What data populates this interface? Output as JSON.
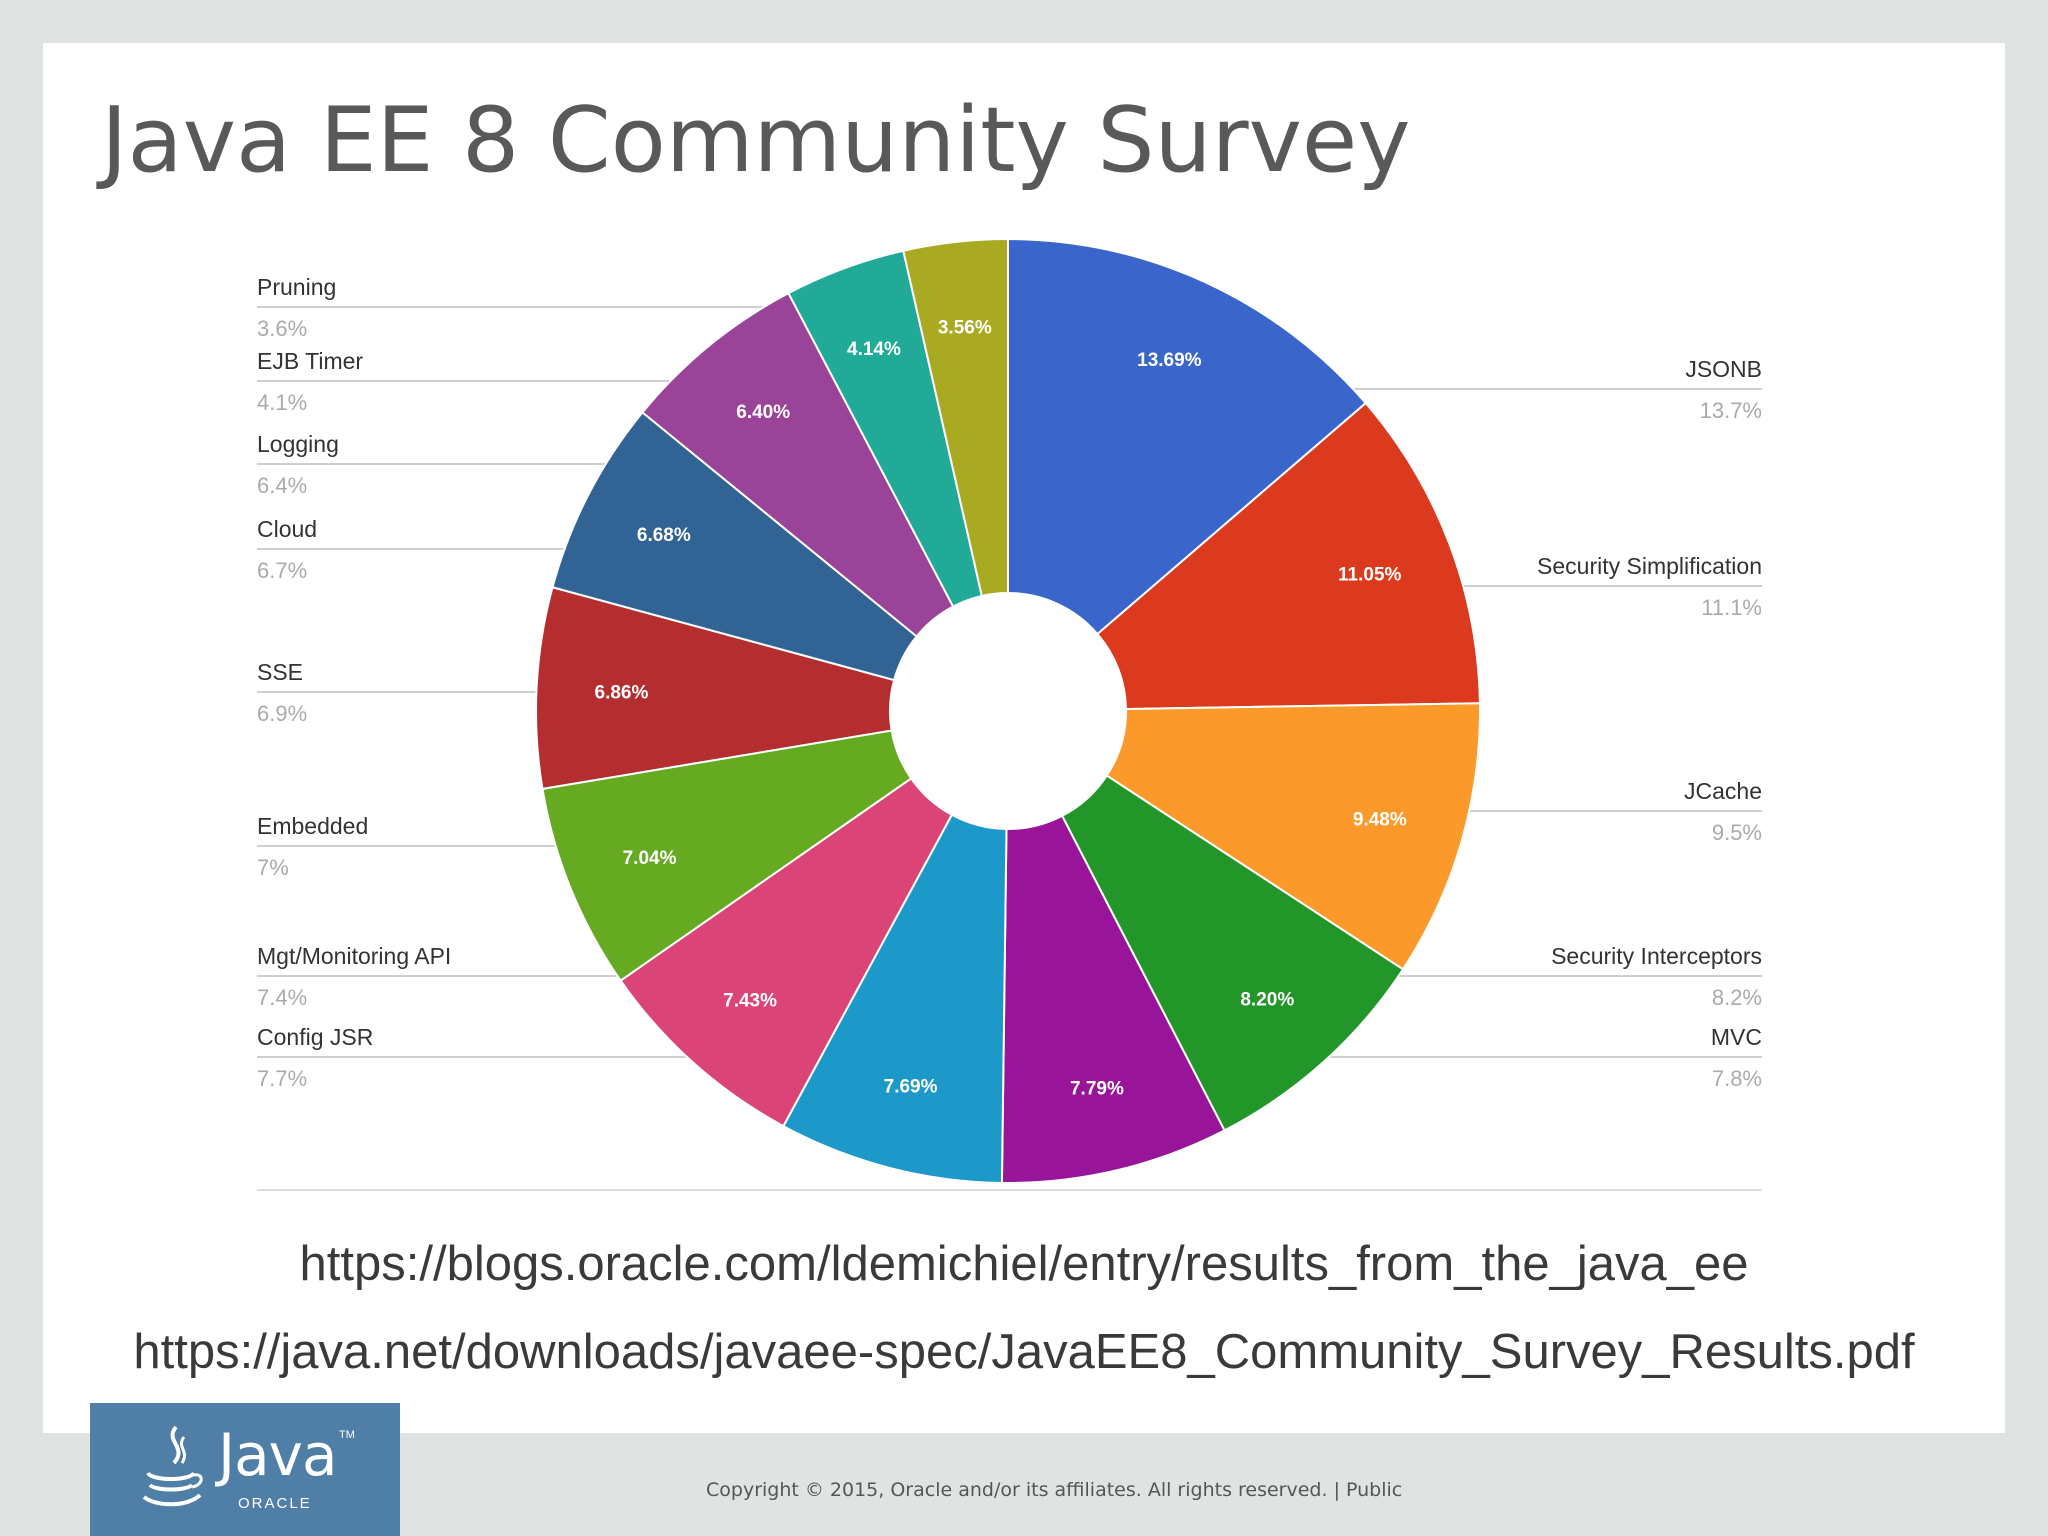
{
  "slide": {
    "title": "Java EE 8 Community Survey",
    "url1": "https://blogs.oracle.com/ldemichiel/entry/results_from_the_java_ee",
    "url2": "https://java.net/downloads/javaee-spec/JavaEE8_Community_Survey_Results.pdf",
    "footer": "Copyright © 2015, Oracle and/or its affiliates. All rights reserved.  |  Public",
    "logo": {
      "word": "Java",
      "tm": "TM",
      "sub": "ORACLE",
      "icon": "java-cup-icon"
    }
  },
  "chart_data": {
    "type": "pie",
    "donut": true,
    "title": "",
    "slices": [
      {
        "name": "JSONB",
        "value": 13.69,
        "slice_label": "13.69%",
        "legend_value": "13.7%",
        "color": "#3a66cc",
        "side": "right"
      },
      {
        "name": "Security Simplification",
        "value": 11.05,
        "slice_label": "11.05%",
        "legend_value": "11.1%",
        "color": "#dc3a1e",
        "side": "right"
      },
      {
        "name": "JCache",
        "value": 9.48,
        "slice_label": "9.48%",
        "legend_value": "9.5%",
        "color": "#fb992b",
        "side": "right"
      },
      {
        "name": "Security Interceptors",
        "value": 8.2,
        "slice_label": "8.20%",
        "legend_value": "8.2%",
        "color": "#23962a",
        "side": "right"
      },
      {
        "name": "MVC",
        "value": 7.79,
        "slice_label": "7.79%",
        "legend_value": "7.8%",
        "color": "#981599",
        "side": "right"
      },
      {
        "name": "Config JSR",
        "value": 7.69,
        "slice_label": "7.69%",
        "legend_value": "7.7%",
        "color": "#1d99c9",
        "side": "left"
      },
      {
        "name": "Mgt/Monitoring API",
        "value": 7.43,
        "slice_label": "7.43%",
        "legend_value": "7.4%",
        "color": "#db4477",
        "side": "left"
      },
      {
        "name": "Embedded",
        "value": 7.04,
        "slice_label": "7.04%",
        "legend_value": "7%",
        "color": "#66aa22",
        "side": "left"
      },
      {
        "name": "SSE",
        "value": 6.86,
        "slice_label": "6.86%",
        "legend_value": "6.9%",
        "color": "#b42e2f",
        "side": "left"
      },
      {
        "name": "Cloud",
        "value": 6.68,
        "slice_label": "6.68%",
        "legend_value": "6.7%",
        "color": "#316395",
        "side": "left"
      },
      {
        "name": "Logging",
        "value": 6.4,
        "slice_label": "6.40%",
        "legend_value": "6.4%",
        "color": "#994499",
        "side": "left"
      },
      {
        "name": "EJB Timer",
        "value": 4.14,
        "slice_label": "4.14%",
        "legend_value": "4.1%",
        "color": "#22aa99",
        "side": "left"
      },
      {
        "name": "Pruning",
        "value": 3.56,
        "slice_label": "3.56%",
        "legend_value": "3.6%",
        "color": "#aaaa22",
        "side": "left"
      }
    ]
  }
}
